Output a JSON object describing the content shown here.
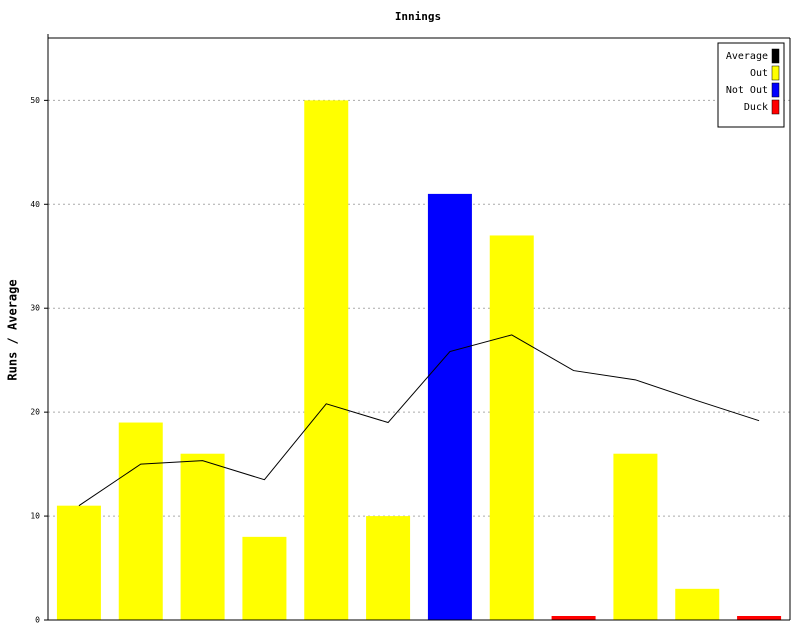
{
  "chart_data": {
    "type": "bar",
    "title": "Innings",
    "y_label": "Runs / Average",
    "categories": [
      null,
      null,
      null,
      null,
      null,
      null,
      null,
      null,
      null,
      null,
      null,
      null
    ],
    "series": [
      {
        "name": "Average",
        "color": "#000000",
        "type": "line",
        "values": [
          11,
          15,
          15.33,
          13.5,
          20.8,
          19,
          25.83,
          27.43,
          24,
          23.11,
          21.1,
          19.18
        ]
      },
      {
        "name": "Out",
        "color": "#ffff00",
        "type": "bar",
        "values": [
          11,
          19,
          16,
          8,
          50,
          10,
          null,
          37,
          null,
          16,
          3,
          null
        ]
      },
      {
        "name": "Not Out",
        "color": "#0000ff",
        "type": "bar",
        "values": [
          null,
          null,
          null,
          null,
          null,
          null,
          41,
          null,
          null,
          null,
          null,
          null
        ]
      },
      {
        "name": "Duck",
        "color": "#ff0000",
        "type": "bar",
        "values": [
          null,
          null,
          null,
          null,
          null,
          null,
          null,
          null,
          0,
          null,
          null,
          0
        ]
      }
    ],
    "ylim": [
      0,
      56
    ],
    "yticks": [
      0,
      10,
      20,
      30,
      40,
      50
    ],
    "grid": true,
    "legend": "top-right"
  }
}
